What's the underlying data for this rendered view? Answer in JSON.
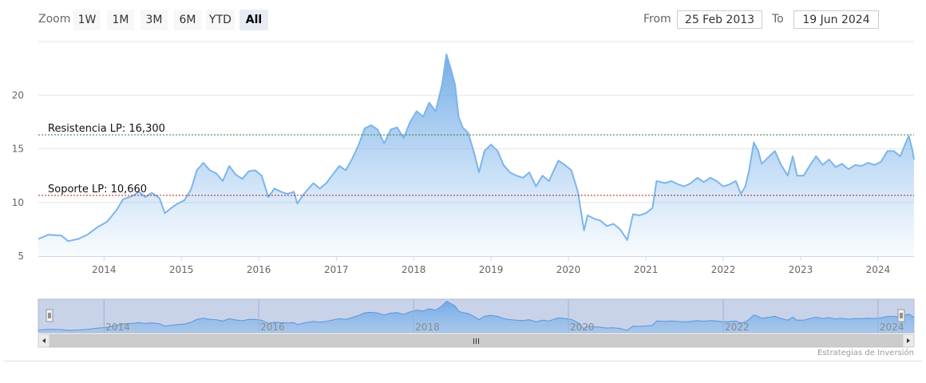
{
  "range_selector": {
    "zoom_label": "Zoom",
    "buttons": [
      "1W",
      "1M",
      "3M",
      "6M",
      "YTD",
      "All"
    ],
    "active_button": "All",
    "from_label": "From",
    "from_value": "25 Feb 2013",
    "to_label": "To",
    "to_value": "19 Jun 2024"
  },
  "credits": "Estrategias de Inversión",
  "colors": {
    "series_line": "#7cb5ec",
    "resistance": "#2e7d32",
    "support": "#b71c1c",
    "navigator_bg": "#c8d3ea"
  },
  "icons": {
    "scroll_left": "arrow-left-icon",
    "scroll_right": "arrow-right-icon",
    "scroll_grip": "grip-icon",
    "handle": "handle-icon"
  },
  "chart_data": {
    "type": "area",
    "x_axis": {
      "type": "date",
      "range": [
        "2013-02-25",
        "2024-06-19"
      ],
      "tick_labels": [
        "2014",
        "2015",
        "2016",
        "2017",
        "2018",
        "2019",
        "2020",
        "2021",
        "2022",
        "2023",
        "2024"
      ]
    },
    "y_axis": {
      "range": [
        5,
        25
      ],
      "tick_values": [
        5,
        10,
        15,
        20
      ],
      "tick_labels": [
        "5",
        "10",
        "15",
        "20"
      ],
      "grid": true
    },
    "navigator_labels": [
      "2014",
      "2016",
      "2018",
      "2020",
      "2022",
      "2024"
    ],
    "plot_lines": [
      {
        "label": "Resistencia LP: 16,300",
        "value": 16.3,
        "style": "dashed",
        "color": "#2e7d32"
      },
      {
        "label": "Soporte LP: 10,660",
        "value": 10.66,
        "style": "dashed",
        "color": "#b71c1c"
      }
    ],
    "series": [
      {
        "points": [
          [
            "2013-02-25",
            6.6
          ],
          [
            "2013-04-15",
            7.0
          ],
          [
            "2013-06-15",
            6.9
          ],
          [
            "2013-07-15",
            6.4
          ],
          [
            "2013-09-01",
            6.6
          ],
          [
            "2013-10-15",
            7.0
          ],
          [
            "2013-12-01",
            7.7
          ],
          [
            "2014-01-15",
            8.2
          ],
          [
            "2014-03-01",
            9.3
          ],
          [
            "2014-04-01",
            10.3
          ],
          [
            "2014-05-15",
            10.6
          ],
          [
            "2014-06-15",
            11.0
          ],
          [
            "2014-07-15",
            10.5
          ],
          [
            "2014-08-15",
            10.9
          ],
          [
            "2014-09-20",
            10.4
          ],
          [
            "2014-10-15",
            9.0
          ],
          [
            "2014-11-15",
            9.5
          ],
          [
            "2014-12-15",
            9.9
          ],
          [
            "2015-01-15",
            10.2
          ],
          [
            "2015-02-15",
            11.2
          ],
          [
            "2015-03-15",
            13.0
          ],
          [
            "2015-04-15",
            13.7
          ],
          [
            "2015-05-15",
            13.0
          ],
          [
            "2015-06-15",
            12.7
          ],
          [
            "2015-07-15",
            12.0
          ],
          [
            "2015-08-15",
            13.4
          ],
          [
            "2015-09-15",
            12.6
          ],
          [
            "2015-10-15",
            12.2
          ],
          [
            "2015-11-15",
            12.9
          ],
          [
            "2015-12-15",
            13.0
          ],
          [
            "2016-01-15",
            12.5
          ],
          [
            "2016-02-15",
            10.5
          ],
          [
            "2016-03-15",
            11.3
          ],
          [
            "2016-04-15",
            11.0
          ],
          [
            "2016-05-15",
            10.8
          ],
          [
            "2016-06-15",
            11.0
          ],
          [
            "2016-07-01",
            9.9
          ],
          [
            "2016-08-01",
            10.8
          ],
          [
            "2016-09-15",
            11.8
          ],
          [
            "2016-10-15",
            11.3
          ],
          [
            "2016-11-15",
            11.8
          ],
          [
            "2016-12-15",
            12.6
          ],
          [
            "2017-01-15",
            13.4
          ],
          [
            "2017-02-15",
            13.0
          ],
          [
            "2017-03-15",
            14.0
          ],
          [
            "2017-04-15",
            15.3
          ],
          [
            "2017-05-15",
            16.9
          ],
          [
            "2017-06-15",
            17.2
          ],
          [
            "2017-07-15",
            16.8
          ],
          [
            "2017-08-15",
            15.5
          ],
          [
            "2017-09-15",
            16.8
          ],
          [
            "2017-10-15",
            17.0
          ],
          [
            "2017-11-15",
            16.0
          ],
          [
            "2017-12-15",
            17.5
          ],
          [
            "2018-01-15",
            18.5
          ],
          [
            "2018-02-15",
            18.0
          ],
          [
            "2018-03-15",
            19.3
          ],
          [
            "2018-04-15",
            18.5
          ],
          [
            "2018-05-15",
            21.0
          ],
          [
            "2018-06-05",
            23.8
          ],
          [
            "2018-06-25",
            22.5
          ],
          [
            "2018-07-15",
            21.0
          ],
          [
            "2018-08-01",
            18.0
          ],
          [
            "2018-08-20",
            17.0
          ],
          [
            "2018-09-15",
            16.5
          ],
          [
            "2018-10-15",
            14.5
          ],
          [
            "2018-11-05",
            12.8
          ],
          [
            "2018-12-01",
            14.8
          ],
          [
            "2019-01-01",
            15.4
          ],
          [
            "2019-02-01",
            14.8
          ],
          [
            "2019-03-01",
            13.5
          ],
          [
            "2019-04-01",
            12.8
          ],
          [
            "2019-05-01",
            12.5
          ],
          [
            "2019-06-01",
            12.3
          ],
          [
            "2019-07-01",
            12.8
          ],
          [
            "2019-08-01",
            11.5
          ],
          [
            "2019-09-01",
            12.5
          ],
          [
            "2019-10-01",
            12.0
          ],
          [
            "2019-11-15",
            13.9
          ],
          [
            "2019-12-15",
            13.5
          ],
          [
            "2020-01-15",
            13.0
          ],
          [
            "2020-02-15",
            11.0
          ],
          [
            "2020-03-15",
            7.4
          ],
          [
            "2020-04-01",
            8.8
          ],
          [
            "2020-05-01",
            8.5
          ],
          [
            "2020-06-01",
            8.3
          ],
          [
            "2020-07-01",
            7.8
          ],
          [
            "2020-08-01",
            8.0
          ],
          [
            "2020-09-01",
            7.5
          ],
          [
            "2020-10-05",
            6.5
          ],
          [
            "2020-11-01",
            8.9
          ],
          [
            "2020-12-01",
            8.8
          ],
          [
            "2021-01-01",
            9.0
          ],
          [
            "2021-02-01",
            9.5
          ],
          [
            "2021-02-20",
            12.0
          ],
          [
            "2021-04-01",
            11.8
          ],
          [
            "2021-05-01",
            12.0
          ],
          [
            "2021-06-01",
            11.7
          ],
          [
            "2021-07-01",
            11.5
          ],
          [
            "2021-08-01",
            11.8
          ],
          [
            "2021-09-01",
            12.3
          ],
          [
            "2021-10-01",
            11.9
          ],
          [
            "2021-11-01",
            12.3
          ],
          [
            "2021-12-01",
            12.0
          ],
          [
            "2022-01-01",
            11.5
          ],
          [
            "2022-02-01",
            11.7
          ],
          [
            "2022-03-01",
            12.0
          ],
          [
            "2022-03-25",
            10.8
          ],
          [
            "2022-04-15",
            11.5
          ],
          [
            "2022-05-01",
            12.8
          ],
          [
            "2022-05-25",
            15.6
          ],
          [
            "2022-06-15",
            14.8
          ],
          [
            "2022-07-01",
            13.6
          ],
          [
            "2022-08-01",
            14.2
          ],
          [
            "2022-09-01",
            14.8
          ],
          [
            "2022-10-01",
            13.5
          ],
          [
            "2022-11-01",
            12.5
          ],
          [
            "2022-11-25",
            14.3
          ],
          [
            "2022-12-15",
            12.5
          ],
          [
            "2023-01-15",
            12.5
          ],
          [
            "2023-02-15",
            13.5
          ],
          [
            "2023-03-15",
            14.3
          ],
          [
            "2023-04-15",
            13.5
          ],
          [
            "2023-05-15",
            14.0
          ],
          [
            "2023-06-15",
            13.3
          ],
          [
            "2023-07-15",
            13.6
          ],
          [
            "2023-08-15",
            13.1
          ],
          [
            "2023-09-15",
            13.5
          ],
          [
            "2023-10-15",
            13.4
          ],
          [
            "2023-11-15",
            13.7
          ],
          [
            "2023-12-15",
            13.5
          ],
          [
            "2024-01-15",
            13.8
          ],
          [
            "2024-02-15",
            14.8
          ],
          [
            "2024-03-15",
            14.8
          ],
          [
            "2024-04-15",
            14.3
          ],
          [
            "2024-05-10",
            15.5
          ],
          [
            "2024-05-25",
            16.2
          ],
          [
            "2024-06-10",
            15.0
          ],
          [
            "2024-06-19",
            14.0
          ]
        ]
      }
    ]
  }
}
